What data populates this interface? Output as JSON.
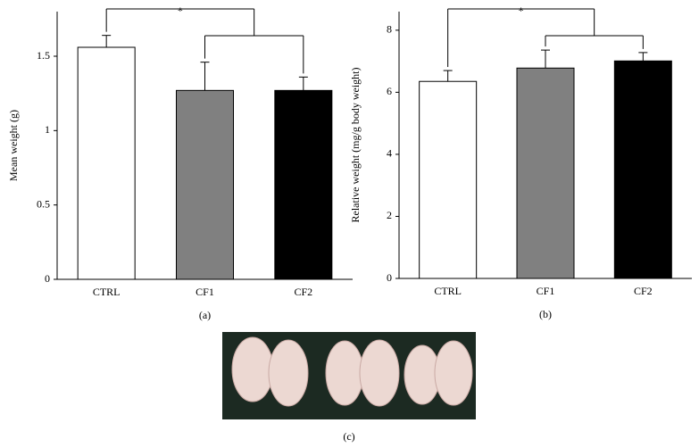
{
  "chart_data": [
    {
      "type": "bar",
      "panel_label": "(a)",
      "y_label": "Mean weight (g)",
      "categories": [
        "CTRL",
        "CF1",
        "CF2"
      ],
      "values": [
        1.56,
        1.27,
        1.27
      ],
      "errors": [
        0.08,
        0.19,
        0.09
      ],
      "colors": [
        "#ffffff",
        "#808080",
        "#000000"
      ],
      "ylim": [
        0,
        1.8
      ],
      "yticks": [
        0,
        0.5,
        1,
        1.5
      ],
      "annotation": "*"
    },
    {
      "type": "bar",
      "panel_label": "(b)",
      "y_label": "Relative weight (mg/g body weight)",
      "categories": [
        "CTRL",
        "CF1",
        "CF2"
      ],
      "values": [
        6.35,
        6.78,
        7.01
      ],
      "errors": [
        0.35,
        0.58,
        0.27
      ],
      "colors": [
        "#ffffff",
        "#808080",
        "#000000"
      ],
      "ylim": [
        0,
        8.6
      ],
      "yticks": [
        0,
        2,
        4,
        6,
        8
      ],
      "annotation": "*"
    }
  ],
  "photo": {
    "panel_label": "(c)"
  }
}
